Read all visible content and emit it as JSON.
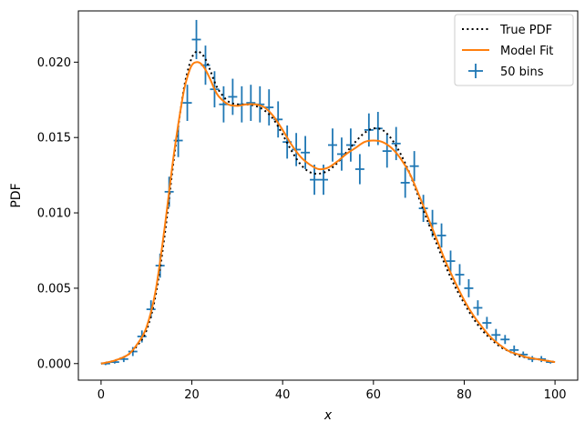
{
  "chart_data": {
    "type": "line",
    "xlabel": "x",
    "ylabel": "PDF",
    "xlim": [
      -5,
      105
    ],
    "ylim": [
      -0.0011,
      0.0234
    ],
    "xticks": [
      0,
      20,
      40,
      60,
      80,
      100
    ],
    "xtick_labels": [
      "0",
      "20",
      "40",
      "60",
      "80",
      "100"
    ],
    "yticks": [
      0.0,
      0.005,
      0.01,
      0.015,
      0.02
    ],
    "ytick_labels": [
      "0.000",
      "0.005",
      "0.010",
      "0.015",
      "0.020"
    ],
    "grid": false,
    "legend_position": "top-right",
    "colors": {
      "true_pdf": "#000000",
      "model_fit": "#ff7f0e",
      "bins": "#1f77b4"
    },
    "series": [
      {
        "name": "True PDF",
        "kind": "line",
        "style": "dotted",
        "x": [
          0,
          3,
          6,
          8,
          10,
          12,
          14,
          16,
          18,
          19,
          20,
          21,
          22,
          23,
          24,
          25,
          26,
          28,
          30,
          32,
          34,
          36,
          38,
          40,
          42,
          44,
          46,
          48,
          50,
          52,
          54,
          56,
          58,
          60,
          62,
          64,
          66,
          68,
          70,
          72,
          74,
          76,
          78,
          80,
          82,
          84,
          86,
          88,
          90,
          92,
          94,
          96,
          98,
          100
        ],
        "y": [
          0.0,
          0.0002,
          0.0006,
          0.0012,
          0.0022,
          0.0045,
          0.0085,
          0.0135,
          0.0178,
          0.0193,
          0.0203,
          0.0207,
          0.0206,
          0.0202,
          0.0195,
          0.0187,
          0.0181,
          0.0174,
          0.0172,
          0.0172,
          0.0171,
          0.0168,
          0.0162,
          0.0152,
          0.0141,
          0.0132,
          0.0127,
          0.0126,
          0.0128,
          0.0133,
          0.014,
          0.0147,
          0.0153,
          0.0156,
          0.0155,
          0.0149,
          0.0139,
          0.0126,
          0.011,
          0.0094,
          0.0079,
          0.0064,
          0.0051,
          0.004,
          0.003,
          0.0022,
          0.0016,
          0.0011,
          0.0008,
          0.0005,
          0.0004,
          0.0003,
          0.0002,
          0.0001
        ]
      },
      {
        "name": "Model Fit",
        "kind": "line",
        "style": "solid",
        "x": [
          0,
          3,
          6,
          8,
          10,
          12,
          14,
          16,
          18,
          19,
          20,
          21,
          22,
          23,
          24,
          25,
          26,
          28,
          30,
          32,
          34,
          36,
          38,
          40,
          42,
          44,
          46,
          48,
          50,
          52,
          54,
          56,
          58,
          60,
          62,
          64,
          66,
          68,
          70,
          72,
          74,
          76,
          78,
          80,
          82,
          84,
          86,
          88,
          90,
          92,
          94,
          96,
          98,
          100
        ],
        "y": [
          0.0,
          0.0002,
          0.0006,
          0.0013,
          0.0024,
          0.0048,
          0.009,
          0.0138,
          0.0177,
          0.019,
          0.0198,
          0.02,
          0.0199,
          0.0195,
          0.0189,
          0.0182,
          0.0177,
          0.0172,
          0.0171,
          0.0172,
          0.0172,
          0.017,
          0.0164,
          0.0155,
          0.0145,
          0.0137,
          0.0132,
          0.0129,
          0.013,
          0.0134,
          0.0139,
          0.0143,
          0.0147,
          0.0148,
          0.0147,
          0.0143,
          0.0136,
          0.0126,
          0.0112,
          0.0097,
          0.0082,
          0.0067,
          0.0054,
          0.0042,
          0.0032,
          0.0024,
          0.0017,
          0.0012,
          0.0008,
          0.0006,
          0.0004,
          0.0003,
          0.0002,
          0.0001
        ]
      },
      {
        "name": "50 bins",
        "kind": "errorbar",
        "x_halfwidth": 1,
        "x": [
          1,
          3,
          5,
          7,
          9,
          11,
          13,
          15,
          17,
          19,
          21,
          23,
          25,
          27,
          29,
          31,
          33,
          35,
          37,
          39,
          41,
          43,
          45,
          47,
          49,
          51,
          53,
          55,
          57,
          59,
          61,
          63,
          65,
          67,
          69,
          71,
          73,
          75,
          77,
          79,
          81,
          83,
          85,
          87,
          89,
          91,
          93,
          95,
          97,
          99
        ],
        "y": [
          0.0,
          0.0001,
          0.0003,
          0.0008,
          0.0018,
          0.0036,
          0.0065,
          0.0114,
          0.0148,
          0.0173,
          0.0215,
          0.0198,
          0.0182,
          0.0172,
          0.0177,
          0.0172,
          0.0173,
          0.0172,
          0.017,
          0.0162,
          0.0147,
          0.0142,
          0.014,
          0.0122,
          0.0122,
          0.0145,
          0.0139,
          0.0145,
          0.0129,
          0.0155,
          0.0156,
          0.0141,
          0.0146,
          0.012,
          0.0131,
          0.0103,
          0.0093,
          0.0085,
          0.0068,
          0.0059,
          0.005,
          0.0037,
          0.0027,
          0.0019,
          0.0016,
          0.0009,
          0.0006,
          0.0003,
          0.0003,
          0.0001
        ],
        "yerr": [
          0.0001,
          0.0001,
          0.0002,
          0.0003,
          0.0004,
          0.0006,
          0.0008,
          0.001,
          0.0011,
          0.0012,
          0.0013,
          0.0013,
          0.0012,
          0.0012,
          0.0012,
          0.0012,
          0.0012,
          0.0012,
          0.0012,
          0.0012,
          0.0011,
          0.0011,
          0.0011,
          0.001,
          0.001,
          0.0011,
          0.0011,
          0.0011,
          0.001,
          0.0011,
          0.0011,
          0.0011,
          0.0011,
          0.001,
          0.001,
          0.0009,
          0.0009,
          0.0008,
          0.0007,
          0.0007,
          0.0006,
          0.0005,
          0.0004,
          0.0004,
          0.0003,
          0.0003,
          0.0002,
          0.0002,
          0.0002,
          0.0001
        ]
      }
    ]
  }
}
